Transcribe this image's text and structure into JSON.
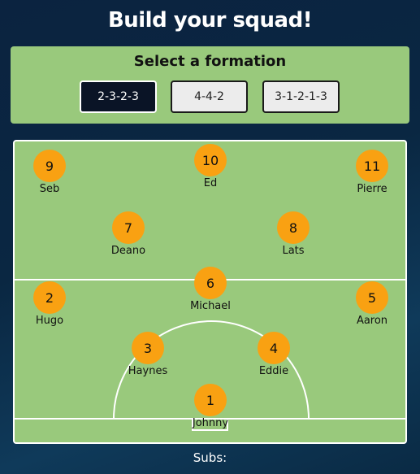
{
  "header": {
    "title": "Build your squad!"
  },
  "formation": {
    "title": "Select a formation",
    "options": [
      "2-3-2-3",
      "4-4-2",
      "3-1-2-1-3"
    ],
    "selected": "2-3-2-3"
  },
  "players": [
    {
      "number": "9",
      "name": "Seb"
    },
    {
      "number": "10",
      "name": "Ed"
    },
    {
      "number": "11",
      "name": "Pierre"
    },
    {
      "number": "7",
      "name": "Deano"
    },
    {
      "number": "8",
      "name": "Lats"
    },
    {
      "number": "2",
      "name": "Hugo"
    },
    {
      "number": "6",
      "name": "Michael"
    },
    {
      "number": "5",
      "name": "Aaron"
    },
    {
      "number": "3",
      "name": "Haynes"
    },
    {
      "number": "4",
      "name": "Eddie"
    },
    {
      "number": "1",
      "name": "Johnny"
    }
  ],
  "subs": {
    "label": "Subs:"
  },
  "colors": {
    "pitch": "#99c97c",
    "player": "#f9a112",
    "selected_button": "#0a1426"
  }
}
